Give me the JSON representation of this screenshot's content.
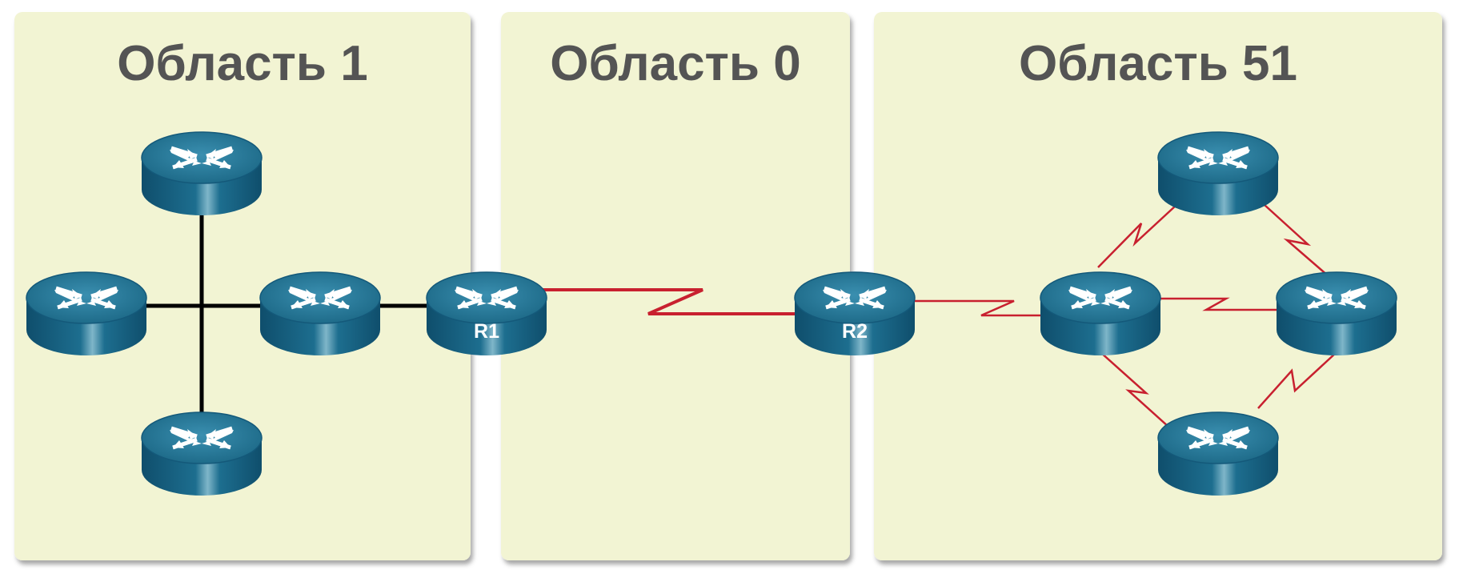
{
  "colors": {
    "panel_fill": "#f2f4d3",
    "title_text": "#545454",
    "ethernet_link": "#000000",
    "serial_link": "#c8202f",
    "router_body": "#1f6e8e"
  },
  "areas": [
    {
      "title": "Область 1"
    },
    {
      "title": "Область 0"
    },
    {
      "title": "Область 51"
    }
  ],
  "routers": {
    "r1": {
      "label": "R1"
    },
    "r2": {
      "label": "R2"
    }
  },
  "icons": {
    "router": "router-icon"
  }
}
